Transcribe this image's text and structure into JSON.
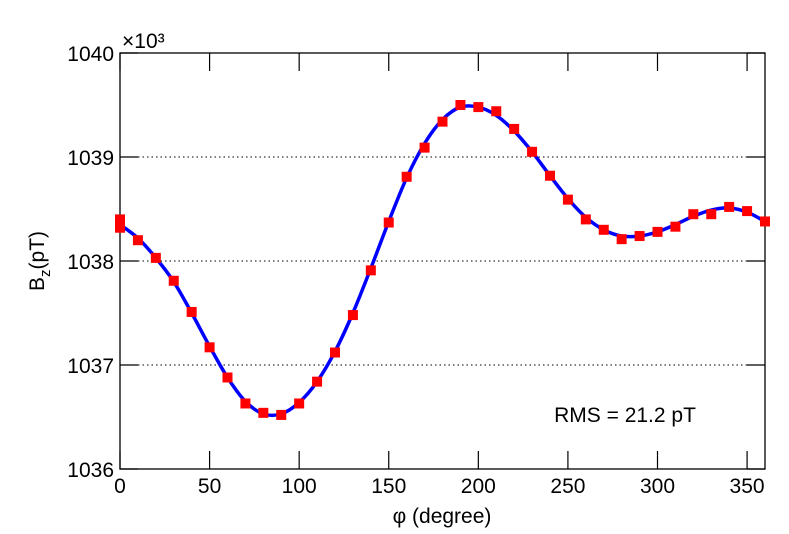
{
  "chart_data": {
    "type": "scatter",
    "xlabel": "φ (degree)",
    "ylabel": "B",
    "ylabel_sub": "z",
    "ylabel_unit": "(pT)",
    "y_multiplier": "×10³",
    "annotation": "RMS = 21.2 pT",
    "xlim": [
      0,
      360
    ],
    "xticks": [
      0,
      50,
      100,
      150,
      200,
      250,
      300,
      350
    ],
    "ylim": [
      1036,
      1040
    ],
    "yticks": [
      1036,
      1037,
      1038,
      1039,
      1040
    ],
    "grid": true,
    "series": [
      {
        "kind": "line",
        "color": "#0000ff",
        "x": [
          0,
          10,
          20,
          30,
          40,
          50,
          60,
          70,
          80,
          90,
          100,
          110,
          120,
          130,
          140,
          150,
          160,
          170,
          180,
          190,
          200,
          210,
          220,
          230,
          240,
          250,
          260,
          270,
          280,
          290,
          300,
          310,
          320,
          330,
          340,
          350,
          360
        ],
        "values": [
          1038.35,
          1038.22,
          1038.03,
          1037.8,
          1037.5,
          1037.18,
          1036.88,
          1036.65,
          1036.53,
          1036.53,
          1036.64,
          1036.84,
          1037.13,
          1037.5,
          1037.93,
          1038.38,
          1038.8,
          1039.13,
          1039.36,
          1039.48,
          1039.48,
          1039.4,
          1039.25,
          1039.05,
          1038.82,
          1038.6,
          1038.42,
          1038.3,
          1038.24,
          1038.24,
          1038.28,
          1038.35,
          1038.43,
          1038.49,
          1038.51,
          1038.47,
          1038.38
        ]
      },
      {
        "kind": "marker",
        "color": "#ff0000",
        "x": [
          0,
          0,
          10,
          20,
          30,
          40,
          50,
          60,
          70,
          80,
          90,
          100,
          110,
          120,
          130,
          140,
          150,
          160,
          170,
          180,
          190,
          200,
          210,
          220,
          230,
          240,
          250,
          260,
          270,
          280,
          290,
          300,
          310,
          320,
          330,
          340,
          350,
          360
        ],
        "values": [
          1038.4,
          1038.32,
          1038.2,
          1038.03,
          1037.81,
          1037.51,
          1037.17,
          1036.88,
          1036.63,
          1036.54,
          1036.52,
          1036.63,
          1036.84,
          1037.12,
          1037.48,
          1037.91,
          1038.37,
          1038.81,
          1039.09,
          1039.34,
          1039.5,
          1039.48,
          1039.44,
          1039.27,
          1039.05,
          1038.82,
          1038.59,
          1038.4,
          1038.3,
          1038.21,
          1038.24,
          1038.28,
          1038.33,
          1038.45,
          1038.45,
          1038.52,
          1038.48,
          1038.38
        ]
      }
    ]
  }
}
